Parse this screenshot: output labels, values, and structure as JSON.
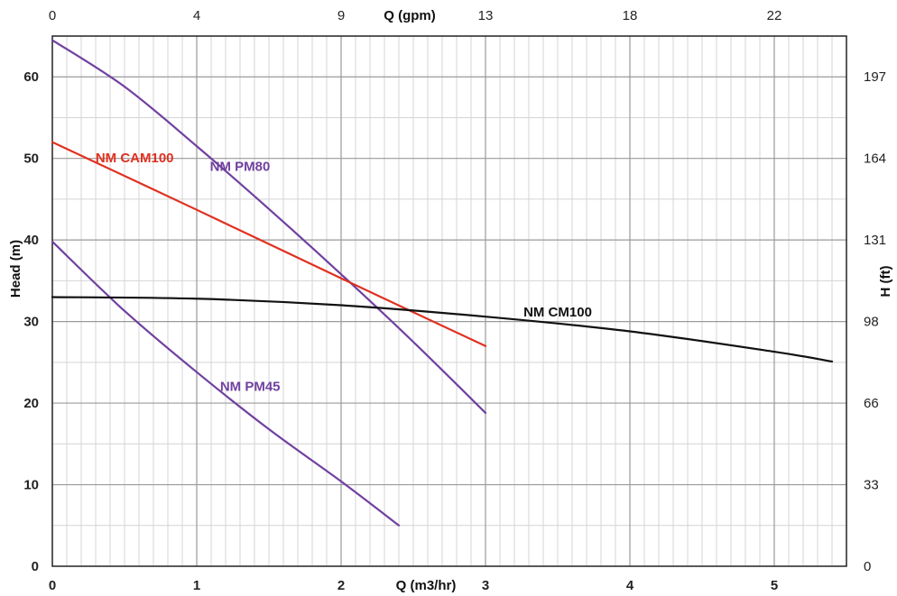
{
  "chart_data": {
    "type": "line",
    "grid": true,
    "x": {
      "label": "Q (m3/hr)",
      "range": [
        0,
        5.5
      ],
      "major_ticks": [
        0,
        1,
        2,
        3,
        4,
        5
      ],
      "minor_step": 0.1
    },
    "x2": {
      "label": "Q (gpm)",
      "ticks": [
        {
          "q": 0,
          "label": "0"
        },
        {
          "q": 1,
          "label": "4"
        },
        {
          "q": 2,
          "label": "9"
        },
        {
          "q": 3,
          "label": "13"
        },
        {
          "q": 4,
          "label": "18"
        },
        {
          "q": 5,
          "label": "22"
        }
      ]
    },
    "y": {
      "label": "Head (m)",
      "range": [
        0,
        65
      ],
      "ticks": [
        0,
        10,
        20,
        30,
        40,
        50,
        60
      ],
      "minor_step": 5
    },
    "y2": {
      "label": "H (ft)",
      "ticks": [
        {
          "m": 0,
          "label": "0"
        },
        {
          "m": 10,
          "label": "33"
        },
        {
          "m": 20,
          "label": "66"
        },
        {
          "m": 30,
          "label": "98"
        },
        {
          "m": 40,
          "label": "131"
        },
        {
          "m": 50,
          "label": "164"
        },
        {
          "m": 60,
          "label": "197"
        }
      ]
    },
    "series": [
      {
        "name": "NM PM80",
        "color": "#7040a0",
        "label_at": [
          1.3,
          48.5
        ],
        "points": [
          [
            0,
            64.5
          ],
          [
            0.5,
            58.8
          ],
          [
            1.0,
            51.5
          ],
          [
            1.5,
            43.8
          ],
          [
            2.0,
            35.8
          ],
          [
            2.5,
            27.5
          ],
          [
            3.0,
            18.8
          ]
        ]
      },
      {
        "name": "NM CAM100",
        "color": "#e03020",
        "label_at": [
          0.57,
          49.5
        ],
        "points": [
          [
            0,
            52
          ],
          [
            1,
            43.7
          ],
          [
            2,
            35.3
          ],
          [
            3,
            27
          ]
        ]
      },
      {
        "name": "NM PM45",
        "color": "#7040a0",
        "label_at": [
          1.37,
          21.5
        ],
        "points": [
          [
            0,
            39.8
          ],
          [
            0.5,
            31.3
          ],
          [
            1.0,
            23.8
          ],
          [
            1.5,
            16.8
          ],
          [
            2.0,
            10.4
          ],
          [
            2.4,
            5.0
          ]
        ]
      },
      {
        "name": "NM CM100",
        "color": "#111111",
        "label_at": [
          3.5,
          30.6
        ],
        "points": [
          [
            0,
            33
          ],
          [
            1,
            32.8
          ],
          [
            2,
            32
          ],
          [
            3,
            30.6
          ],
          [
            4,
            28.8
          ],
          [
            5,
            26.3
          ],
          [
            5.4,
            25.1
          ]
        ]
      }
    ]
  }
}
